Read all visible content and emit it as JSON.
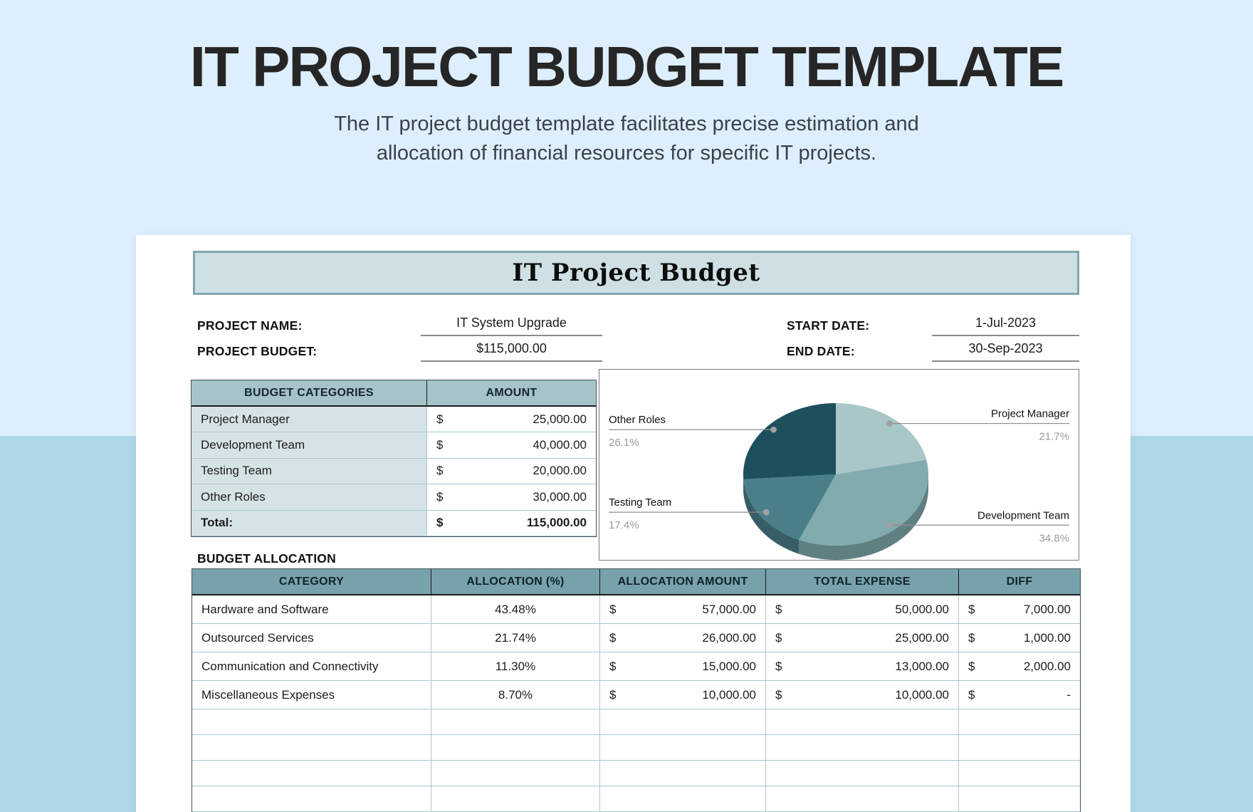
{
  "page": {
    "title": "IT PROJECT BUDGET TEMPLATE",
    "subtitle_line1": "The IT project budget template facilitates precise estimation and",
    "subtitle_line2": "allocation of financial resources for specific IT projects."
  },
  "sheet": {
    "heading": "IT Project Budget",
    "fields": {
      "project_name_label": "PROJECT NAME:",
      "project_name_value": "IT System Upgrade",
      "project_budget_label": "PROJECT BUDGET:",
      "project_budget_value": "$115,000.00",
      "start_date_label": "START DATE:",
      "start_date_value": "1-Jul-2023",
      "end_date_label": "END DATE:",
      "end_date_value": "30-Sep-2023"
    },
    "budget_table": {
      "headers": [
        "BUDGET CATEGORIES",
        "AMOUNT"
      ],
      "rows": [
        {
          "category": "Project Manager",
          "currency": "$",
          "amount": "25,000.00"
        },
        {
          "category": "Development Team",
          "currency": "$",
          "amount": "40,000.00"
        },
        {
          "category": "Testing Team",
          "currency": "$",
          "amount": "20,000.00"
        },
        {
          "category": "Other Roles",
          "currency": "$",
          "amount": "30,000.00"
        }
      ],
      "total": {
        "category": "Total:",
        "currency": "$",
        "amount": "115,000.00"
      }
    },
    "allocation_label": "BUDGET ALLOCATION",
    "allocation_table": {
      "headers": [
        "CATEGORY",
        "ALLOCATION (%)",
        "ALLOCATION AMOUNT",
        "TOTAL EXPENSE",
        "DIFF"
      ],
      "rows": [
        {
          "category": "Hardware and Software",
          "allocation_pct": "43.48%",
          "currency": "$",
          "allocation_amount": "57,000.00",
          "total_expense": "50,000.00",
          "diff": "7,000.00"
        },
        {
          "category": "Outsourced Services",
          "allocation_pct": "21.74%",
          "currency": "$",
          "allocation_amount": "26,000.00",
          "total_expense": "25,000.00",
          "diff": "1,000.00"
        },
        {
          "category": "Communication and Connectivity",
          "allocation_pct": "11.30%",
          "currency": "$",
          "allocation_amount": "15,000.00",
          "total_expense": "13,000.00",
          "diff": "2,000.00"
        },
        {
          "category": "Miscellaneous Expenses",
          "allocation_pct": "8.70%",
          "currency": "$",
          "allocation_amount": "10,000.00",
          "total_expense": "10,000.00",
          "diff": "-"
        }
      ],
      "empty_row_count": 4
    }
  },
  "chart_data": {
    "type": "pie",
    "style": "3d",
    "title": "",
    "legend_position": "none",
    "slices": [
      {
        "label": "Project Manager",
        "value": 25000,
        "pct": 21.7,
        "pct_label": "21.7%",
        "color": "#a9c7c9",
        "side": "right"
      },
      {
        "label": "Development Team",
        "value": 40000,
        "pct": 34.8,
        "pct_label": "34.8%",
        "color": "#82abae",
        "side": "right"
      },
      {
        "label": "Testing Team",
        "value": 20000,
        "pct": 17.4,
        "pct_label": "17.4%",
        "color": "#4a7f8a",
        "side": "left"
      },
      {
        "label": "Other Roles",
        "value": 30000,
        "pct": 26.1,
        "pct_label": "26.1%",
        "color": "#1e4f5d",
        "side": "left"
      }
    ]
  },
  "colors": {
    "background_top": "#ddeffc",
    "background_bottom": "#aed8e8",
    "card": "#ffffff",
    "heading_fill": "#cfe0e4",
    "heading_border": "#7fa6ae",
    "table1_header": "#a5c3c9",
    "category_cell": "#d6e3e6",
    "alloc_header": "#78a2ab",
    "grid_line": "#a9c8ce",
    "percent_text": "#9a9a9a"
  }
}
